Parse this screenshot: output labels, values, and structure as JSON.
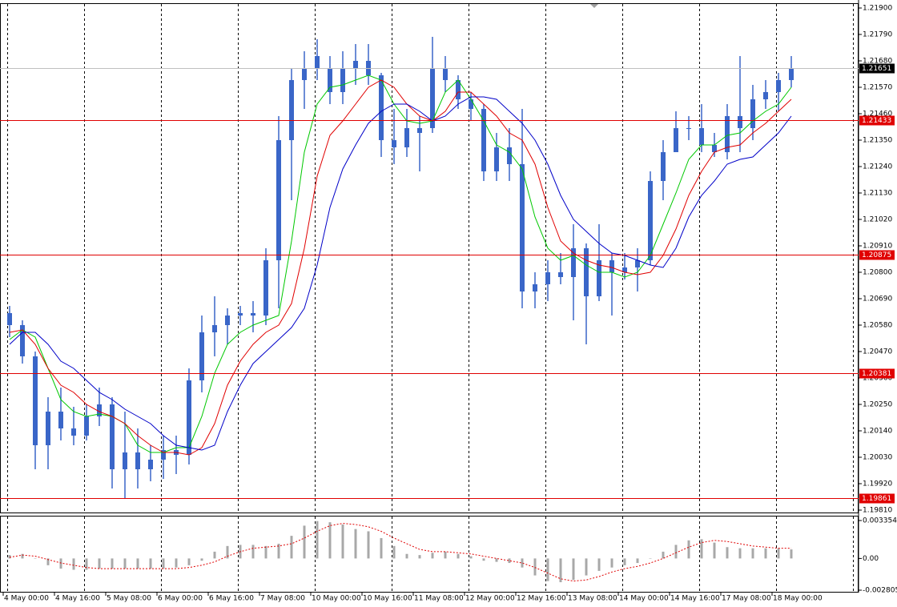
{
  "chart_data": [
    {
      "type": "candlestick",
      "color": "#3a66c8",
      "categories": [
        "4 May 00:00",
        null,
        null,
        null,
        "4 May 16:00",
        null,
        null,
        null,
        "5 May 08:00",
        null,
        null,
        null,
        "6 May 00:00",
        null,
        null,
        null,
        "6 May 16:00",
        null,
        null,
        null,
        "7 May 08:00",
        null,
        null,
        null,
        "10 May 00:00",
        null,
        null,
        null,
        "10 May 16:00",
        null,
        null,
        null,
        "11 May 08:00",
        null,
        null,
        null,
        "12 May 00:00",
        null,
        null,
        null,
        "12 May 16:00",
        null,
        null,
        null,
        "13 May 08:00",
        null,
        null,
        null,
        "14 May 00:00",
        null,
        null,
        null,
        "14 May 16:00",
        null,
        null,
        null,
        "17 May 08:00",
        null,
        null,
        null,
        "18 May 00:00",
        null
      ],
      "open": [
        1.2063,
        1.2058,
        1.2045,
        1.2008,
        1.2022,
        1.2015,
        1.2012,
        1.202,
        1.2025,
        1.1998,
        1.2005,
        1.1998,
        1.2002,
        1.2006,
        1.2004,
        1.2035,
        1.2055,
        1.2058,
        1.2062,
        1.2063,
        1.2062,
        1.2085,
        1.2135,
        1.216,
        1.2165,
        1.2165,
        1.2155,
        1.2165,
        1.2168,
        1.2162,
        1.2135,
        1.2132,
        1.214,
        1.214,
        1.2165,
        1.216,
        1.2152,
        1.2148,
        1.2122,
        1.2132,
        1.2125,
        1.2072,
        1.2075,
        1.208,
        1.2078,
        1.209,
        1.207,
        1.2085,
        1.208,
        1.2082,
        1.2085,
        1.2118,
        1.213,
        1.214,
        1.214,
        1.2133,
        1.213,
        1.2145,
        1.214,
        1.2152,
        1.2155,
        1.216
      ],
      "high": [
        1.2066,
        1.206,
        1.2047,
        1.2028,
        1.2032,
        1.2024,
        1.2025,
        1.2032,
        1.2028,
        1.2022,
        1.2015,
        1.2008,
        1.2012,
        1.2012,
        1.204,
        1.2062,
        1.207,
        1.2065,
        1.2066,
        1.2068,
        1.209,
        1.2145,
        1.2165,
        1.2172,
        1.2177,
        1.217,
        1.2172,
        1.2175,
        1.2175,
        1.2163,
        1.2148,
        1.2148,
        1.2145,
        1.2178,
        1.217,
        1.2162,
        1.2155,
        1.215,
        1.2138,
        1.214,
        1.2148,
        1.208,
        1.2085,
        1.2088,
        1.21,
        1.2092,
        1.21,
        1.2088,
        1.2088,
        1.209,
        1.2122,
        1.2135,
        1.2147,
        1.2145,
        1.215,
        1.2138,
        1.215,
        1.217,
        1.2158,
        1.216,
        1.2163,
        1.217
      ],
      "low": [
        1.2053,
        1.2042,
        1.1998,
        1.1998,
        1.201,
        1.2008,
        1.201,
        1.2016,
        1.199,
        1.1986,
        1.199,
        1.1993,
        1.1994,
        1.1996,
        1.2,
        1.203,
        1.2045,
        1.205,
        1.2058,
        1.2055,
        1.2058,
        1.2065,
        1.211,
        1.2148,
        1.216,
        1.215,
        1.215,
        1.2158,
        1.2158,
        1.2128,
        1.2125,
        1.2128,
        1.2122,
        1.2138,
        1.2155,
        1.2148,
        1.2143,
        1.2118,
        1.2118,
        1.2118,
        1.2065,
        1.2065,
        1.2068,
        1.2075,
        1.206,
        1.205,
        1.2068,
        1.2062,
        1.2077,
        1.2072,
        1.2083,
        1.211,
        1.213,
        1.2135,
        1.213,
        1.2128,
        1.2127,
        1.213,
        1.2135,
        1.2148,
        1.2147,
        1.2157
      ],
      "close": [
        1.2058,
        1.2045,
        1.2008,
        1.2022,
        1.2015,
        1.2012,
        1.202,
        1.2025,
        1.1998,
        1.2005,
        1.1998,
        1.2002,
        1.2006,
        1.2004,
        1.2035,
        1.2055,
        1.2058,
        1.2062,
        1.2063,
        1.2062,
        1.2085,
        1.2135,
        1.216,
        1.2165,
        1.217,
        1.2155,
        1.2165,
        1.2168,
        1.2162,
        1.2135,
        1.2132,
        1.214,
        1.2138,
        1.2165,
        1.216,
        1.2152,
        1.2148,
        1.2122,
        1.2132,
        1.2125,
        1.2072,
        1.2075,
        1.208,
        1.2078,
        1.209,
        1.207,
        1.2085,
        1.208,
        1.2082,
        1.2085,
        1.2118,
        1.213,
        1.214,
        1.214,
        1.2133,
        1.213,
        1.2145,
        1.214,
        1.2152,
        1.2155,
        1.216,
        1.2165
      ],
      "series": [
        {
          "color": "#00c800",
          "values": [
            1.2052,
            1.2056,
            1.2053,
            1.204,
            1.2027,
            1.2022,
            1.202,
            1.2021,
            1.202,
            1.2017,
            1.2008,
            1.2005,
            1.2005,
            1.2007,
            1.2007,
            1.202,
            1.2038,
            1.205,
            1.2055,
            1.2058,
            1.206,
            1.2062,
            1.2093,
            1.213,
            1.215,
            1.2157,
            1.2158,
            1.216,
            1.2162,
            1.216,
            1.215,
            1.2143,
            1.2142,
            1.2143,
            1.2155,
            1.216,
            1.2152,
            1.2143,
            1.2133,
            1.213,
            1.2123,
            1.2103,
            1.209,
            1.2085,
            1.2087,
            1.2083,
            1.208,
            1.208,
            1.2078,
            1.208,
            1.2087,
            1.21,
            1.2113,
            1.2127,
            1.2133,
            1.2133,
            1.2137,
            1.2138,
            1.2143,
            1.2147,
            1.215,
            1.2157
          ]
        },
        {
          "color": "#e00000",
          "values": [
            1.2055,
            1.2056,
            1.205,
            1.204,
            1.2033,
            1.203,
            1.2025,
            1.2022,
            1.202,
            1.2017,
            1.2012,
            1.2008,
            1.2005,
            1.2005,
            1.2004,
            1.2007,
            1.2017,
            1.2033,
            1.2043,
            1.205,
            1.2055,
            1.2058,
            1.2067,
            1.209,
            1.212,
            1.2137,
            1.2143,
            1.215,
            1.2157,
            1.216,
            1.2157,
            1.215,
            1.2145,
            1.2143,
            1.2147,
            1.2155,
            1.2155,
            1.215,
            1.2145,
            1.2138,
            1.2135,
            1.2125,
            1.2107,
            1.2093,
            1.2088,
            1.2085,
            1.2083,
            1.2082,
            1.208,
            1.2079,
            1.208,
            1.2087,
            1.2098,
            1.2112,
            1.2122,
            1.213,
            1.2132,
            1.2133,
            1.2138,
            1.2142,
            1.2147,
            1.2152
          ]
        },
        {
          "color": "#0000c8",
          "values": [
            1.205,
            1.2055,
            1.2055,
            1.205,
            1.2043,
            1.204,
            1.2035,
            1.203,
            1.2027,
            1.2023,
            1.202,
            1.2017,
            1.2012,
            1.2008,
            1.2007,
            1.2006,
            1.2008,
            1.2022,
            1.2033,
            1.2042,
            1.2047,
            1.2052,
            1.2057,
            1.2065,
            1.2083,
            1.2107,
            1.2123,
            1.2133,
            1.2142,
            1.2147,
            1.215,
            1.215,
            1.2147,
            1.2143,
            1.2145,
            1.215,
            1.2153,
            1.2153,
            1.2152,
            1.2147,
            1.2142,
            1.2135,
            1.2125,
            1.2112,
            1.2102,
            1.2097,
            1.2092,
            1.2088,
            1.2087,
            1.2085,
            1.2083,
            1.2082,
            1.209,
            1.2103,
            1.2112,
            1.2118,
            1.2125,
            1.2127,
            1.2128,
            1.2133,
            1.2138,
            1.2145
          ]
        }
      ],
      "ylim": [
        1.198,
        1.2192
      ],
      "yticks": [
        {
          "value": 1.219,
          "label": "1.21900"
        },
        {
          "value": 1.2179,
          "label": "1.21790"
        },
        {
          "value": 1.2168,
          "label": "1.21680"
        },
        {
          "value": 1.2157,
          "label": "1.21570"
        },
        {
          "value": 1.2146,
          "label": "1.21460"
        },
        {
          "value": 1.2135,
          "label": "1.21350"
        },
        {
          "value": 1.2124,
          "label": "1.21240"
        },
        {
          "value": 1.2113,
          "label": "1.21130"
        },
        {
          "value": 1.2102,
          "label": "1.21020"
        },
        {
          "value": 1.2091,
          "label": "1.20910"
        },
        {
          "value": 1.208,
          "label": "1.20800"
        },
        {
          "value": 1.2069,
          "label": "1.20690"
        },
        {
          "value": 1.2058,
          "label": "1.20580"
        },
        {
          "value": 1.2047,
          "label": "1.20470"
        },
        {
          "value": 1.2036,
          "label": "1.20360"
        },
        {
          "value": 1.2025,
          "label": "1.20250"
        },
        {
          "value": 1.2014,
          "label": "1.20140"
        },
        {
          "value": 1.2003,
          "label": "1.20030"
        },
        {
          "value": 1.1992,
          "label": "1.19920"
        },
        {
          "value": 1.1981,
          "label": "1.19810"
        }
      ],
      "levels": [
        1.21433,
        1.20875,
        1.20381,
        1.19861
      ],
      "level_color": "#e00000",
      "current_price": 1.21651
    },
    {
      "type": "macd",
      "color": "#a8a8a8",
      "values": [
        0.0003,
        0.0004,
        0,
        -0.0006,
        -0.0009,
        -0.001,
        -0.001,
        -0.0009,
        -0.0009,
        -0.0009,
        -0.0009,
        -0.0009,
        -0.0009,
        -0.0008,
        -0.0006,
        -0.0002,
        0.0006,
        0.0011,
        0.0012,
        0.0012,
        0.0011,
        0.0013,
        0.002,
        0.0029,
        0.0033,
        0.0032,
        0.003,
        0.0026,
        0.0024,
        0.0018,
        0.0011,
        0.0004,
        0.0003,
        0.0005,
        0.0006,
        0.0004,
        0.0002,
        -0.0002,
        -0.0003,
        -0.0004,
        -0.0008,
        -0.0015,
        -0.002,
        -0.0021,
        -0.0019,
        -0.0015,
        -0.0011,
        -0.0008,
        -0.0006,
        -0.0004,
        0,
        0.0006,
        0.0012,
        0.0016,
        0.0017,
        0.0014,
        0.001,
        0.0009,
        0.0009,
        0.0009,
        0.0009,
        0.0008
      ],
      "series": [
        {
          "color": "#e00000",
          "values": [
            0.0001,
            0.0003,
            0.0002,
            -0.0001,
            -0.0004,
            -0.0006,
            -0.0008,
            -0.0009,
            -0.0009,
            -0.0009,
            -0.0009,
            -0.0009,
            -0.0009,
            -0.0009,
            -0.0008,
            -0.0006,
            -0.0003,
            0.0002,
            0.0006,
            0.0009,
            0.001,
            0.0011,
            0.0013,
            0.0018,
            0.0024,
            0.0029,
            0.0031,
            0.003,
            0.0028,
            0.0024,
            0.0018,
            0.0013,
            0.0008,
            0.0006,
            0.0006,
            0.0005,
            0.0004,
            0.0002,
            0,
            -0.0002,
            -0.0004,
            -0.0008,
            -0.0013,
            -0.0018,
            -0.002,
            -0.0019,
            -0.0016,
            -0.0012,
            -0.0009,
            -0.0007,
            -0.0004,
            0,
            0.0005,
            0.001,
            0.0014,
            0.0016,
            0.0015,
            0.0013,
            0.0011,
            0.001,
            0.0009,
            0.0009
          ]
        }
      ],
      "ylim": [
        -0.002805,
        0.003354
      ],
      "yticks": [
        0.003354,
        {
          "value": 0,
          "label": "0.00"
        },
        -0.002805
      ]
    }
  ]
}
